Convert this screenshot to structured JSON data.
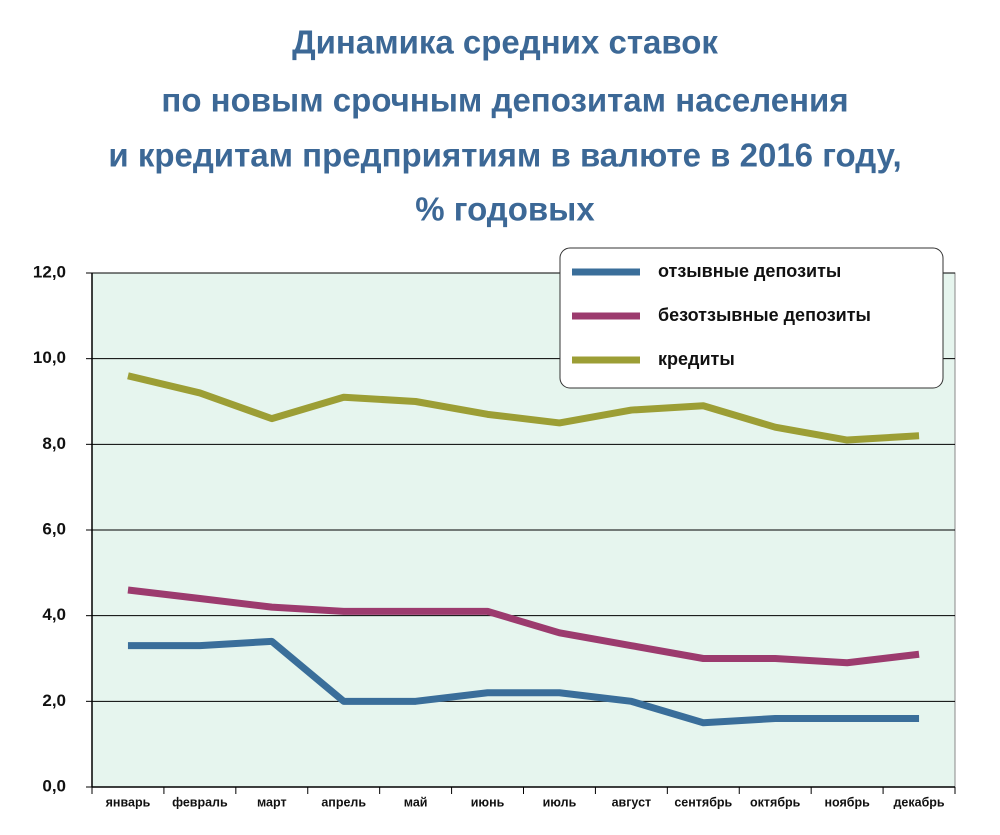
{
  "chart_data": {
    "type": "line",
    "title": [
      "Динамика средних ставок",
      "по новым срочным депозитам  населения",
      "и кредитам предприятиям в валюте в 2016 году,",
      "% годовых"
    ],
    "categories": [
      "январь",
      "февраль",
      "март",
      "апрель",
      "май",
      "июнь",
      "июль",
      "август",
      "сентябрь",
      "октябрь",
      "ноябрь",
      "декабрь"
    ],
    "series": [
      {
        "name": "отзывные депозиты",
        "color": "#3a6e9a",
        "values": [
          3.3,
          3.3,
          3.4,
          2.0,
          2.0,
          2.2,
          2.2,
          2.0,
          1.5,
          1.6,
          1.6,
          1.6
        ]
      },
      {
        "name": "безотзывные депозиты",
        "color": "#9c3b6e",
        "values": [
          4.6,
          4.4,
          4.2,
          4.1,
          4.1,
          4.1,
          3.6,
          3.3,
          3.0,
          3.0,
          2.9,
          3.1
        ]
      },
      {
        "name": "кредиты",
        "color": "#9c9e35",
        "values": [
          9.6,
          9.2,
          8.6,
          9.1,
          9.0,
          8.7,
          8.5,
          8.8,
          8.9,
          8.4,
          8.1,
          8.2
        ]
      }
    ],
    "ylim": [
      0,
      12
    ],
    "yticks": [
      {
        "value": 0,
        "label": "0,0"
      },
      {
        "value": 2,
        "label": "2,0"
      },
      {
        "value": 4,
        "label": "4,0"
      },
      {
        "value": 6,
        "label": "6,0"
      },
      {
        "value": 8,
        "label": "8,0"
      },
      {
        "value": 10,
        "label": "10,0"
      },
      {
        "value": 12,
        "label": "12,0"
      }
    ],
    "grid": true,
    "legend": "upper right"
  }
}
